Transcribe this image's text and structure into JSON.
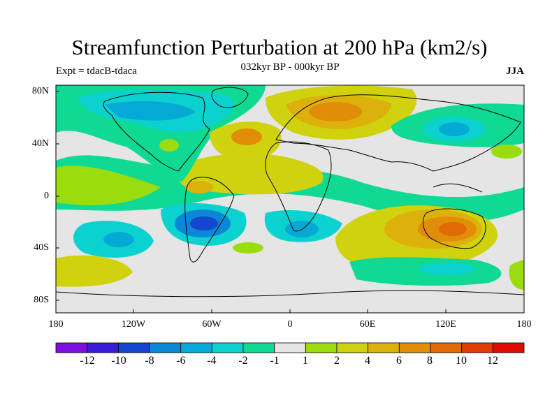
{
  "title": "Streamfunction Perturbation at 200 hPa (km2/s)",
  "subtitle": "032kyr BP - 000kyr BP",
  "left_label": "Expt = tdacB-tdaca",
  "right_label": "JJA",
  "lat_labels": [
    "80N",
    "40N",
    "0",
    "40S",
    "80S"
  ],
  "lon_labels": [
    "180",
    "120W",
    "60W",
    "0",
    "60E",
    "120E",
    "180"
  ],
  "colorbar": {
    "labels": [
      "-12",
      "-10",
      "-8",
      "-6",
      "-4",
      "-2",
      "-1",
      "1",
      "2",
      "4",
      "6",
      "8",
      "10",
      "12"
    ],
    "colors": [
      "#7f0fe0",
      "#3a1ad8",
      "#1446cf",
      "#0a88d6",
      "#05a9d5",
      "#0cd2cf",
      "#10d993",
      "#e5e5e5",
      "#9bdc0e",
      "#cfd20d",
      "#ddb10b",
      "#e18d07",
      "#e06a05",
      "#e03d04",
      "#e00c04"
    ]
  },
  "chart_data": {
    "type": "contour-map",
    "variable": "Streamfunction Perturbation at 200 hPa",
    "units": "km2/s",
    "experiment": "tdacB-tdaca",
    "period": "032kyr BP - 000kyr BP",
    "season": "JJA",
    "lon_range": [
      -180,
      180
    ],
    "lat_range": [
      -90,
      90
    ],
    "contour_levels": [
      -12,
      -10,
      -8,
      -6,
      -4,
      -2,
      -1,
      1,
      2,
      4,
      6,
      8,
      10,
      12
    ]
  }
}
